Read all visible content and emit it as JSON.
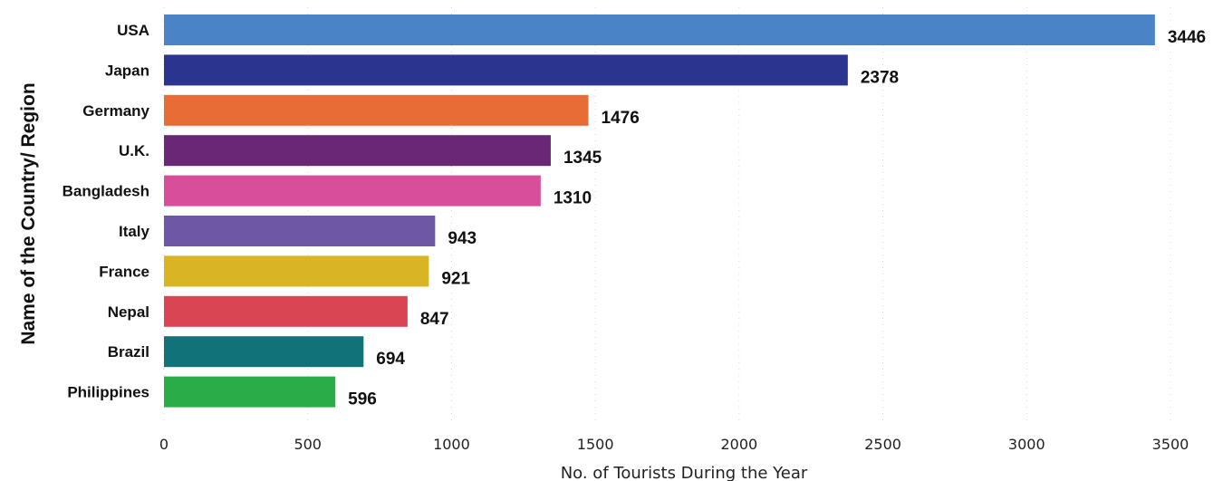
{
  "chart_data": {
    "type": "bar",
    "orientation": "horizontal",
    "categories": [
      "USA",
      "Japan",
      "Germany",
      "U.K.",
      "Bangladesh",
      "Italy",
      "France",
      "Nepal",
      "Brazil",
      "Philippines"
    ],
    "values": [
      3446,
      2378,
      1476,
      1345,
      1310,
      943,
      921,
      847,
      694,
      596
    ],
    "colors": [
      "#4a84c6",
      "#2b3590",
      "#e86c36",
      "#692775",
      "#d84e9b",
      "#6e58a6",
      "#d9b526",
      "#d94553",
      "#12727a",
      "#2aad49"
    ],
    "xlabel": "No. of Tourists During the Year",
    "ylabel": "Name of the Country/ Region",
    "xlim": [
      0,
      3500
    ],
    "xticks": [
      0,
      500,
      1000,
      1500,
      2000,
      2500,
      3000,
      3500
    ],
    "grid": "vertical dotted",
    "legend": "none"
  }
}
